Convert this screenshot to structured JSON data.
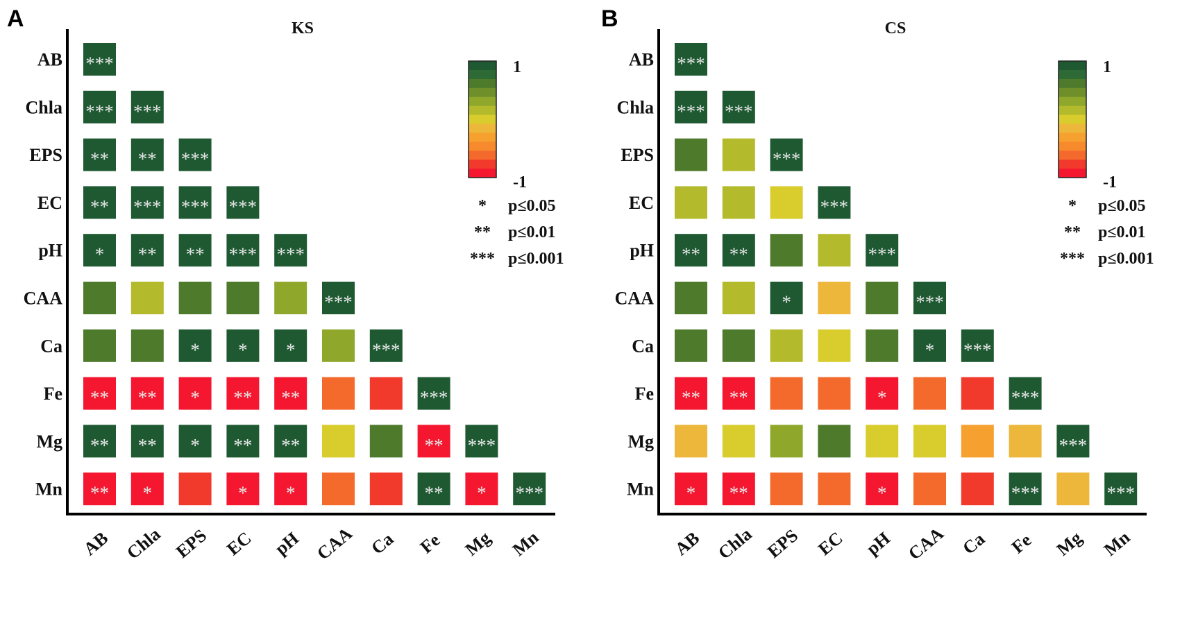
{
  "variables": [
    "AB",
    "Chla",
    "EPS",
    "EC",
    "pH",
    "CAA",
    "Ca",
    "Fe",
    "Mg",
    "Mn"
  ],
  "palette": {
    "dg": "#1e5932",
    "mg": "#4e7a2c",
    "og": "#8fa82c",
    "yg": "#b3ba2c",
    "yl": "#d9cd2e",
    "ao": "#ecb73a",
    "or": "#f6a030",
    "oo": "#f46a2c",
    "rr": "#f23a2c",
    "rd": "#f4172f"
  },
  "scale_colors": [
    "#1e5932",
    "#2e6a35",
    "#4e7a2c",
    "#6f8f2a",
    "#8fa82c",
    "#b3ba2c",
    "#d9cd2e",
    "#ecb73a",
    "#f6a030",
    "#f68a2c",
    "#f46a2c",
    "#f23a2c",
    "#f4172f"
  ],
  "legend": {
    "max_label": "1",
    "min_label": "-1",
    "sig": [
      {
        "stars": "*",
        "label": "p≤0.05"
      },
      {
        "stars": "**",
        "label": "p≤0.01"
      },
      {
        "stars": "***",
        "label": "p≤0.001"
      }
    ]
  },
  "chart_data": [
    {
      "type": "heatmap",
      "panel": "A",
      "title": "KS",
      "rows": [
        "AB",
        "Chla",
        "EPS",
        "EC",
        "pH",
        "CAA",
        "Ca",
        "Fe",
        "Mg",
        "Mn"
      ],
      "cols": [
        "AB",
        "Chla",
        "EPS",
        "EC",
        "pH",
        "CAA",
        "Ca",
        "Fe",
        "Mg",
        "Mn"
      ],
      "cells": [
        [
          [
            "dg",
            "***"
          ]
        ],
        [
          [
            "dg",
            "***"
          ],
          [
            "dg",
            "***"
          ]
        ],
        [
          [
            "dg",
            "**"
          ],
          [
            "dg",
            "**"
          ],
          [
            "dg",
            "***"
          ]
        ],
        [
          [
            "dg",
            "**"
          ],
          [
            "dg",
            "***"
          ],
          [
            "dg",
            "***"
          ],
          [
            "dg",
            "***"
          ]
        ],
        [
          [
            "dg",
            "*"
          ],
          [
            "dg",
            "**"
          ],
          [
            "dg",
            "**"
          ],
          [
            "dg",
            "***"
          ],
          [
            "dg",
            "***"
          ]
        ],
        [
          [
            "mg",
            ""
          ],
          [
            "yg",
            ""
          ],
          [
            "mg",
            ""
          ],
          [
            "mg",
            ""
          ],
          [
            "og",
            ""
          ],
          [
            "dg",
            "***"
          ]
        ],
        [
          [
            "mg",
            ""
          ],
          [
            "mg",
            ""
          ],
          [
            "dg",
            "*"
          ],
          [
            "dg",
            "*"
          ],
          [
            "dg",
            "*"
          ],
          [
            "og",
            ""
          ],
          [
            "dg",
            "***"
          ]
        ],
        [
          [
            "rd",
            "**"
          ],
          [
            "rd",
            "**"
          ],
          [
            "rd",
            "*"
          ],
          [
            "rd",
            "**"
          ],
          [
            "rd",
            "**"
          ],
          [
            "oo",
            ""
          ],
          [
            "rr",
            ""
          ],
          [
            "dg",
            "***"
          ]
        ],
        [
          [
            "dg",
            "**"
          ],
          [
            "dg",
            "**"
          ],
          [
            "dg",
            "*"
          ],
          [
            "dg",
            "**"
          ],
          [
            "dg",
            "**"
          ],
          [
            "yl",
            ""
          ],
          [
            "mg",
            ""
          ],
          [
            "rd",
            "**"
          ],
          [
            "dg",
            "***"
          ]
        ],
        [
          [
            "rd",
            "**"
          ],
          [
            "rd",
            "*"
          ],
          [
            "rr",
            ""
          ],
          [
            "rd",
            "*"
          ],
          [
            "rd",
            "*"
          ],
          [
            "oo",
            ""
          ],
          [
            "rr",
            ""
          ],
          [
            "dg",
            "**"
          ],
          [
            "rd",
            "*"
          ],
          [
            "dg",
            "***"
          ]
        ]
      ]
    },
    {
      "type": "heatmap",
      "panel": "B",
      "title": "CS",
      "rows": [
        "AB",
        "Chla",
        "EPS",
        "EC",
        "pH",
        "CAA",
        "Ca",
        "Fe",
        "Mg",
        "Mn"
      ],
      "cols": [
        "AB",
        "Chla",
        "EPS",
        "EC",
        "pH",
        "CAA",
        "Ca",
        "Fe",
        "Mg",
        "Mn"
      ],
      "cells": [
        [
          [
            "dg",
            "***"
          ]
        ],
        [
          [
            "dg",
            "***"
          ],
          [
            "dg",
            "***"
          ]
        ],
        [
          [
            "mg",
            ""
          ],
          [
            "yg",
            ""
          ],
          [
            "dg",
            "***"
          ]
        ],
        [
          [
            "yg",
            ""
          ],
          [
            "yg",
            ""
          ],
          [
            "yl",
            ""
          ],
          [
            "dg",
            "***"
          ]
        ],
        [
          [
            "dg",
            "**"
          ],
          [
            "dg",
            "**"
          ],
          [
            "mg",
            ""
          ],
          [
            "yg",
            ""
          ],
          [
            "dg",
            "***"
          ]
        ],
        [
          [
            "mg",
            ""
          ],
          [
            "yg",
            ""
          ],
          [
            "dg",
            "*"
          ],
          [
            "ao",
            ""
          ],
          [
            "mg",
            ""
          ],
          [
            "dg",
            "***"
          ]
        ],
        [
          [
            "mg",
            ""
          ],
          [
            "mg",
            ""
          ],
          [
            "yg",
            ""
          ],
          [
            "yl",
            ""
          ],
          [
            "mg",
            ""
          ],
          [
            "dg",
            "*"
          ],
          [
            "dg",
            "***"
          ]
        ],
        [
          [
            "rd",
            "**"
          ],
          [
            "rd",
            "**"
          ],
          [
            "oo",
            ""
          ],
          [
            "oo",
            ""
          ],
          [
            "rd",
            "*"
          ],
          [
            "oo",
            ""
          ],
          [
            "rr",
            ""
          ],
          [
            "dg",
            "***"
          ]
        ],
        [
          [
            "ao",
            ""
          ],
          [
            "yl",
            ""
          ],
          [
            "og",
            ""
          ],
          [
            "mg",
            ""
          ],
          [
            "yl",
            ""
          ],
          [
            "yl",
            ""
          ],
          [
            "or",
            ""
          ],
          [
            "ao",
            ""
          ],
          [
            "dg",
            "***"
          ]
        ],
        [
          [
            "rd",
            "*"
          ],
          [
            "rd",
            "**"
          ],
          [
            "oo",
            ""
          ],
          [
            "oo",
            ""
          ],
          [
            "rd",
            "*"
          ],
          [
            "oo",
            ""
          ],
          [
            "rr",
            ""
          ],
          [
            "dg",
            "***"
          ],
          [
            "ao",
            ""
          ],
          [
            "dg",
            "***"
          ]
        ]
      ]
    }
  ]
}
